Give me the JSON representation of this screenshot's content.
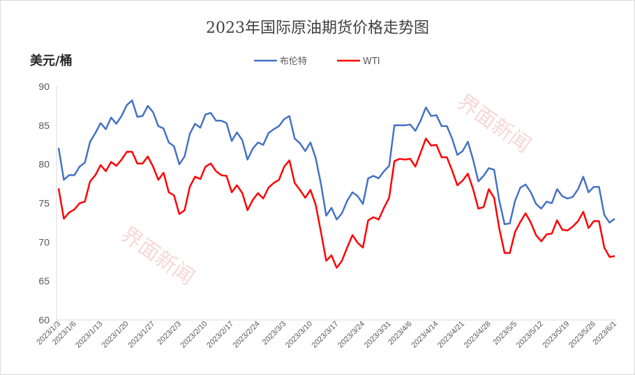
{
  "chart_data": {
    "type": "line",
    "title": "2023年国际原油期货价格走势图",
    "ylabel": "美元/桶",
    "xlabel": "",
    "ylim": [
      60,
      90
    ],
    "yticks": [
      60,
      65,
      70,
      75,
      80,
      85,
      90
    ],
    "grid": false,
    "legend_position": "top-center",
    "watermark": "界面新闻",
    "x_tick_labels": [
      "2023/1/3",
      "2023/1/6",
      "2023/1/13",
      "2023/1/20",
      "2023/1/27",
      "2023/2/3",
      "2023/2/10",
      "2023/2/17",
      "2023/2/24",
      "2023/3/3",
      "2023/3/10",
      "2023/3/17",
      "2023/3/24",
      "2023/3/31",
      "2023/4/6",
      "2023/4/14",
      "2023/4/21",
      "2023/4/28",
      "2023/5/5",
      "2023/5/12",
      "2023/5/19",
      "2023/5/26",
      "2023/6/1"
    ],
    "x_tick_positions": [
      0,
      3,
      8,
      13,
      18,
      23,
      28,
      33,
      38,
      43,
      48,
      53,
      58,
      63,
      67,
      72,
      77,
      82,
      87,
      92,
      97,
      102,
      106
    ],
    "series": [
      {
        "name": "布伦特",
        "color": "#4472c4",
        "values": [
          82.1,
          78.0,
          78.6,
          78.6,
          79.7,
          80.2,
          82.9,
          84.0,
          85.3,
          84.5,
          86.0,
          85.2,
          86.2,
          87.6,
          88.2,
          86.1,
          86.2,
          87.5,
          86.7,
          84.9,
          84.6,
          82.8,
          82.3,
          80.0,
          81.0,
          83.9,
          85.2,
          84.7,
          86.4,
          86.6,
          85.6,
          85.6,
          85.3,
          83.0,
          84.1,
          83.1,
          80.6,
          82.0,
          82.8,
          82.5,
          84.0,
          84.5,
          84.9,
          85.8,
          86.2,
          83.3,
          82.7,
          81.7,
          82.8,
          80.8,
          77.5,
          73.4,
          74.4,
          72.9,
          73.7,
          75.3,
          76.4,
          75.9,
          74.9,
          78.2,
          78.5,
          78.2,
          79.1,
          79.8,
          85.0,
          85.0,
          85.0,
          85.1,
          84.3,
          85.6,
          87.3,
          86.2,
          86.3,
          84.9,
          84.9,
          83.3,
          81.2,
          81.7,
          82.9,
          80.6,
          77.8,
          78.5,
          79.5,
          79.3,
          75.3,
          72.3,
          72.4,
          75.3,
          77.0,
          77.4,
          76.4,
          74.9,
          74.3,
          75.2,
          75.0,
          76.8,
          75.9,
          75.6,
          75.8,
          76.8,
          78.4,
          76.4,
          77.1,
          77.1,
          73.5,
          72.5,
          73.0
        ]
      },
      {
        "name": "WTI",
        "color": "#ff0000",
        "values": [
          76.9,
          73.0,
          73.8,
          74.2,
          75.0,
          75.2,
          77.8,
          78.6,
          79.9,
          79.1,
          80.3,
          79.8,
          80.6,
          81.6,
          81.6,
          80.1,
          80.1,
          81.0,
          79.7,
          78.0,
          78.9,
          76.4,
          76.0,
          73.6,
          74.1,
          77.1,
          78.4,
          78.1,
          79.7,
          80.1,
          79.1,
          78.6,
          78.5,
          76.4,
          77.3,
          76.3,
          74.1,
          75.4,
          76.3,
          75.6,
          77.0,
          77.6,
          78.0,
          79.7,
          80.5,
          77.6,
          76.7,
          75.7,
          76.7,
          74.8,
          71.3,
          67.6,
          68.3,
          66.7,
          67.6,
          69.3,
          70.9,
          69.9,
          69.3,
          72.8,
          73.2,
          72.9,
          74.4,
          75.7,
          80.4,
          80.7,
          80.6,
          80.7,
          79.7,
          81.5,
          83.3,
          82.4,
          82.5,
          80.9,
          80.9,
          79.2,
          77.3,
          77.9,
          78.8,
          76.8,
          74.3,
          74.5,
          76.8,
          75.7,
          71.7,
          68.6,
          68.6,
          71.3,
          72.6,
          73.7,
          72.5,
          70.9,
          70.1,
          71.0,
          71.1,
          72.8,
          71.6,
          71.5,
          72.0,
          72.7,
          73.9,
          71.8,
          72.7,
          72.7,
          69.3,
          68.1,
          68.2
        ]
      }
    ]
  }
}
